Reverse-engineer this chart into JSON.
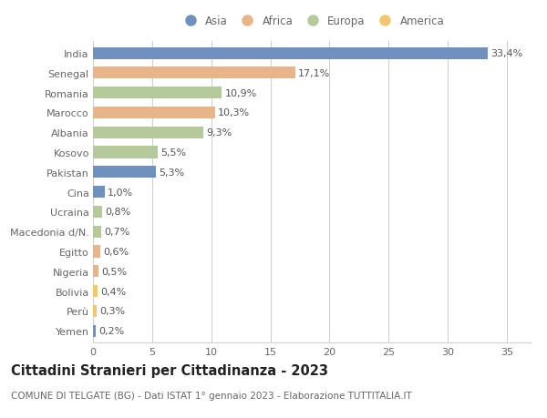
{
  "countries": [
    "India",
    "Senegal",
    "Romania",
    "Marocco",
    "Albania",
    "Kosovo",
    "Pakistan",
    "Cina",
    "Ucraina",
    "Macedonia d/N.",
    "Egitto",
    "Nigeria",
    "Bolivia",
    "Perù",
    "Yemen"
  ],
  "values": [
    33.4,
    17.1,
    10.9,
    10.3,
    9.3,
    5.5,
    5.3,
    1.0,
    0.8,
    0.7,
    0.6,
    0.5,
    0.4,
    0.3,
    0.2
  ],
  "labels": [
    "33,4%",
    "17,1%",
    "10,9%",
    "10,3%",
    "9,3%",
    "5,5%",
    "5,3%",
    "1,0%",
    "0,8%",
    "0,7%",
    "0,6%",
    "0,5%",
    "0,4%",
    "0,3%",
    "0,2%"
  ],
  "continents": [
    "Asia",
    "Africa",
    "Europa",
    "Africa",
    "Europa",
    "Europa",
    "Asia",
    "Asia",
    "Europa",
    "Europa",
    "Africa",
    "Africa",
    "America",
    "America",
    "Asia"
  ],
  "colors": {
    "Asia": "#7090c0",
    "Africa": "#e8b48a",
    "Europa": "#b5c99a",
    "America": "#f0c870"
  },
  "legend_order": [
    "Asia",
    "Africa",
    "Europa",
    "America"
  ],
  "xlim": [
    0,
    37
  ],
  "xticks": [
    0,
    5,
    10,
    15,
    20,
    25,
    30,
    35
  ],
  "title": "Cittadini Stranieri per Cittadinanza - 2023",
  "subtitle": "COMUNE DI TELGATE (BG) - Dati ISTAT 1° gennaio 2023 - Elaborazione TUTTITALIA.IT",
  "background_color": "#ffffff",
  "grid_color": "#d0d0d0",
  "bar_height": 0.6,
  "title_fontsize": 10.5,
  "subtitle_fontsize": 7.5,
  "label_fontsize": 8,
  "ytick_fontsize": 8,
  "xtick_fontsize": 8,
  "legend_fontsize": 8.5
}
